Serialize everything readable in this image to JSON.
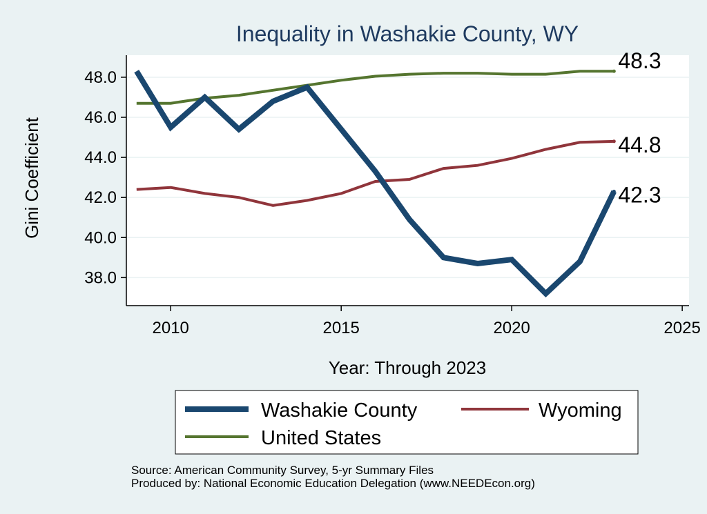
{
  "chart_data": {
    "type": "line",
    "title": "Inequality in Washakie County, WY",
    "xlabel": "Year: Through 2023",
    "ylabel": "Gini Coefficient",
    "xlim": [
      2008.7,
      2025.2
    ],
    "ylim": [
      36.6,
      49.1
    ],
    "xticks": [
      2010,
      2015,
      2020,
      2025
    ],
    "yticks": [
      38.0,
      40.0,
      42.0,
      44.0,
      46.0,
      48.0
    ],
    "grid": true,
    "legend_position": "bottom",
    "x": [
      2009,
      2010,
      2011,
      2012,
      2013,
      2014,
      2015,
      2016,
      2017,
      2018,
      2019,
      2020,
      2021,
      2022,
      2023
    ],
    "series": [
      {
        "name": "Washakie County",
        "color": "#1a476f",
        "values": [
          48.3,
          45.5,
          47.0,
          45.4,
          46.8,
          47.5,
          45.4,
          43.3,
          40.9,
          39.0,
          38.7,
          38.9,
          37.2,
          38.8,
          42.3
        ],
        "end_label": "42.3"
      },
      {
        "name": "Wyoming",
        "color": "#90353b",
        "values": [
          42.4,
          42.5,
          42.2,
          42.0,
          41.6,
          41.85,
          42.2,
          42.8,
          42.9,
          43.45,
          43.6,
          43.95,
          44.4,
          44.75,
          44.8
        ],
        "end_label": "44.8"
      },
      {
        "name": "United States",
        "color": "#55752f",
        "values": [
          46.7,
          46.7,
          46.95,
          47.1,
          47.35,
          47.6,
          47.85,
          48.05,
          48.15,
          48.2,
          48.2,
          48.15,
          48.15,
          48.3,
          48.3
        ],
        "end_label": "48.3"
      }
    ]
  },
  "footer": {
    "source": "Source: American Community Survey, 5-yr Summary Files",
    "produced": "Produced by: National Economic Education Delegation (www.NEEDEcon.org)"
  }
}
